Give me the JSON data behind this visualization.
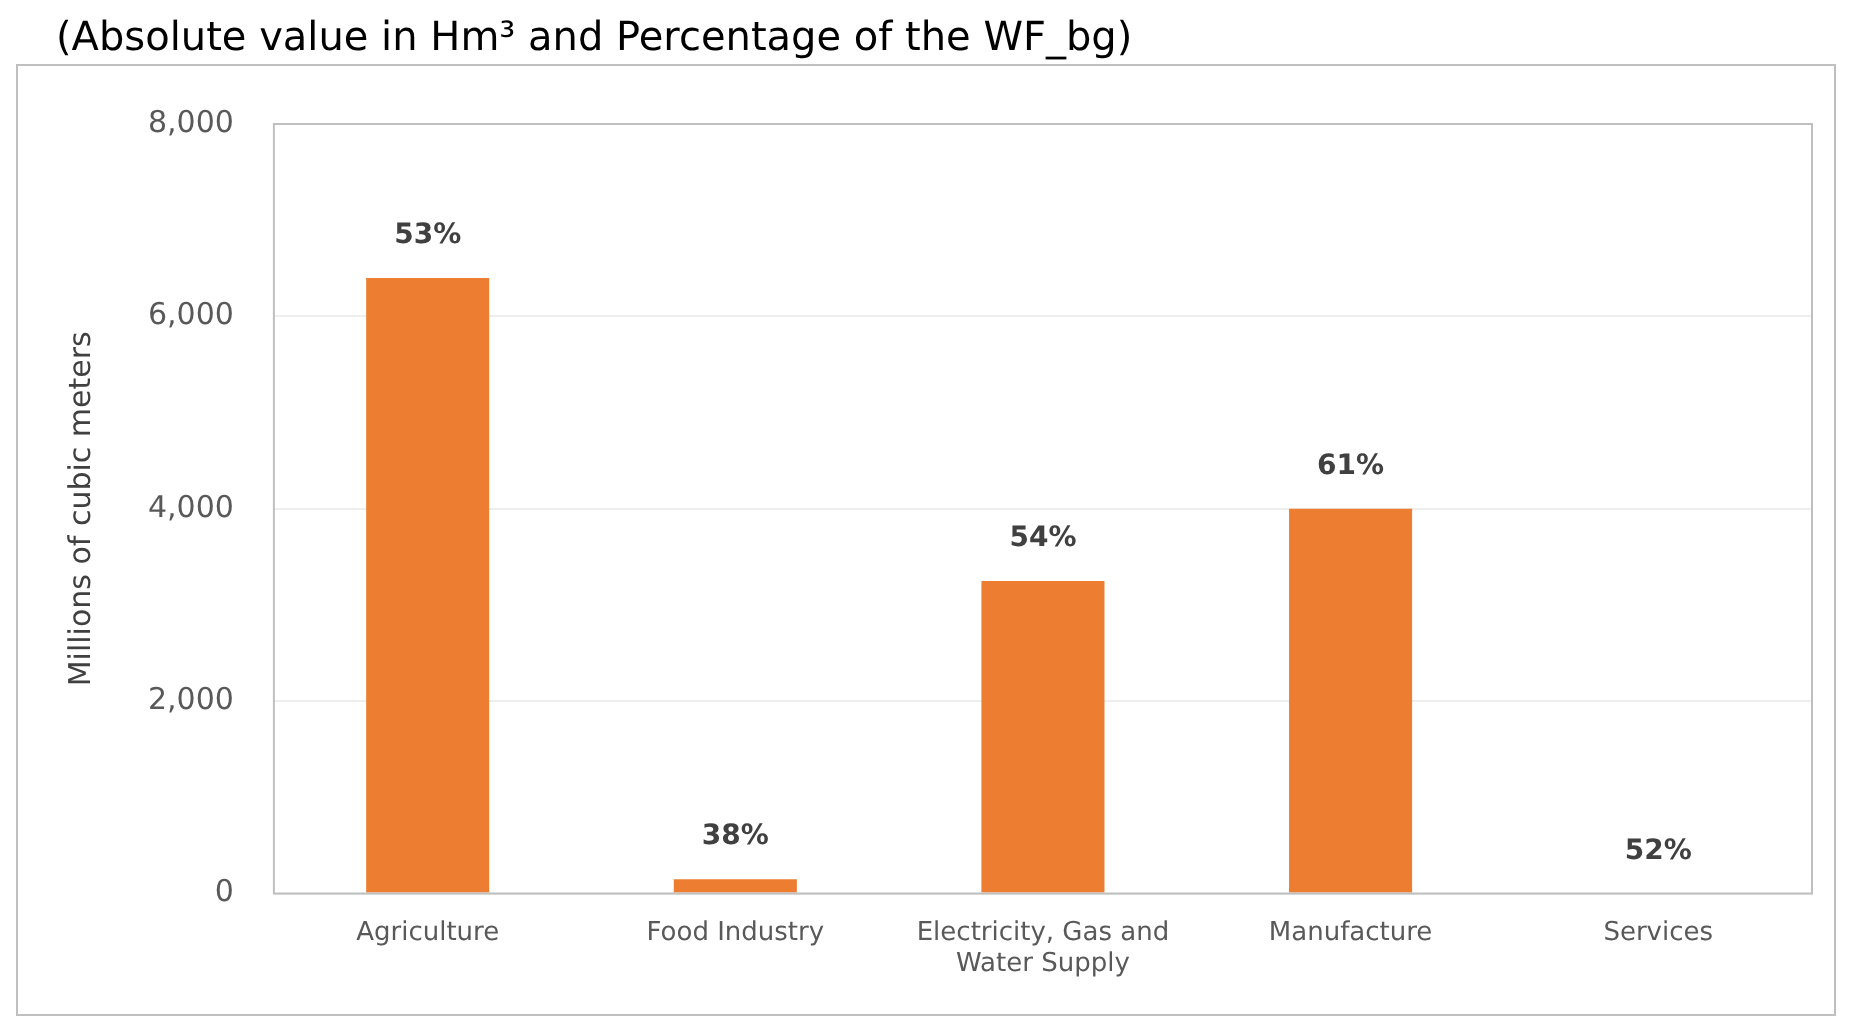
{
  "chart_data": {
    "type": "bar",
    "title": "(Absolute value in Hm³ and Percentage of the WF_bg)",
    "ylabel": "Millions of cubic meters",
    "categories": [
      "Agriculture",
      "Food Industry",
      "Electricity, Gas and Water Supply",
      "Manufacture",
      "Services"
    ],
    "values": [
      6400,
      150,
      3250,
      4000,
      null
    ],
    "color": "#ed7d31",
    "annotations": [
      {
        "text": "53%",
        "x": "Agriculture",
        "y": 6400
      },
      {
        "text": "38%",
        "x": "Food Industry",
        "y": 150
      },
      {
        "text": "54%",
        "x": "Electricity, Gas and Water Supply",
        "y": 3250
      },
      {
        "text": "61%",
        "x": "Manufacture",
        "y": 4000
      },
      "52%"
    ],
    "ylim": [
      0,
      8000
    ],
    "yticks": [
      0,
      {
        "value": 2000,
        "label": "2,000"
      },
      {
        "value": 4000,
        "label": "4,000"
      },
      {
        "value": 6000,
        "label": "6,000"
      },
      {
        "value": 8000,
        "label": "8,000"
      }
    ],
    "grid": "y",
    "legend": false
  }
}
